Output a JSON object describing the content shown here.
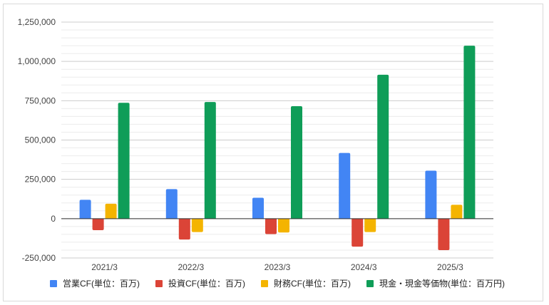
{
  "chart_data": {
    "type": "bar",
    "title": "",
    "xlabel": "",
    "ylabel": "",
    "categories": [
      "2021/3",
      "2022/3",
      "2023/3",
      "2024/3",
      "2025/3"
    ],
    "ylim": [
      -250000,
      1250000
    ],
    "yticks": [
      -250000,
      0,
      250000,
      500000,
      750000,
      1000000,
      1250000
    ],
    "ytick_labels": [
      "-250,000",
      "0",
      "250,000",
      "500,000",
      "750,000",
      "1,000,000",
      "1,250,000"
    ],
    "grid": true,
    "legend_position": "bottom",
    "series": [
      {
        "name": "営業CF(単位：百万)",
        "color": "#4285f4",
        "values": [
          120000,
          188000,
          133000,
          418000,
          305000
        ]
      },
      {
        "name": "投資CF(単位：百万)",
        "color": "#db4437",
        "values": [
          -73000,
          -133000,
          -98000,
          -178000,
          -200000
        ]
      },
      {
        "name": "財務CF(単位：百万)",
        "color": "#f4b400",
        "values": [
          95000,
          -85000,
          -88000,
          -85000,
          88000
        ]
      },
      {
        "name": "現金・現金等価物(単位：百万円)",
        "color": "#0f9d58",
        "values": [
          737000,
          742000,
          715000,
          915000,
          1100000
        ]
      }
    ]
  }
}
